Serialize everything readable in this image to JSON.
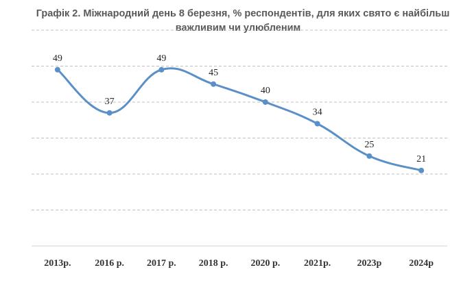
{
  "chart_data": {
    "type": "line",
    "title_line1": "Графік 2. Міжнародний день 8 березня, % респондентів, для яких свято є найбільш",
    "title_line2": "важливим чи улюбленим",
    "categories": [
      "2013р.",
      "2016 р.",
      "2017 р.",
      "2018 р.",
      "2020 р.",
      "2021р.",
      "2023р",
      "2024р"
    ],
    "series": [
      {
        "name": "% респондентів",
        "values": [
          49,
          37,
          49,
          45,
          40,
          34,
          25,
          21
        ],
        "color": "#5b8fc7"
      }
    ],
    "ylim": [
      0,
      60
    ],
    "grid": true,
    "xlabel": "",
    "ylabel": ""
  }
}
